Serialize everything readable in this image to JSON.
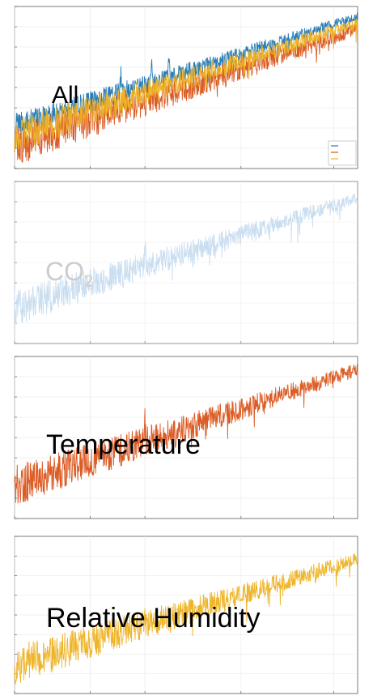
{
  "colors": {
    "co2": "#1f77b4",
    "temperature": "#d95319",
    "humidity": "#edb120",
    "co2_faded": "#b9d4ec",
    "axis": "#444444",
    "grid": "#e6e6e6",
    "label_black": "#000000",
    "label_gray": "#c0c0c0"
  },
  "chart_data": [
    {
      "type": "line",
      "scale": "log-log",
      "grid": true,
      "legend_position": "bottom-right",
      "overlay_label": "All",
      "series": [
        {
          "key": "co2",
          "color": "#1f77b4",
          "start_level": 0.74,
          "end_level": 0.06,
          "noise": 0.05,
          "peaks": [
            [
              0.31,
              0.1
            ],
            [
              0.4,
              0.16
            ],
            [
              0.45,
              0.12
            ]
          ]
        },
        {
          "key": "temperature",
          "color": "#d95319",
          "start_level": 0.86,
          "end_level": 0.14,
          "noise": 0.08,
          "peaks": [
            [
              0.4,
              0.08
            ]
          ]
        },
        {
          "key": "humidity",
          "color": "#edb120",
          "start_level": 0.8,
          "end_level": 0.1,
          "noise": 0.07,
          "peaks": [
            [
              0.4,
              0.06
            ]
          ]
        }
      ]
    },
    {
      "type": "line",
      "scale": "log-log",
      "grid": true,
      "overlay_label": "CO",
      "overlay_label_sub": "2",
      "series": [
        {
          "key": "co2",
          "color": "#b9d4ec",
          "start_level": 0.78,
          "end_level": 0.1,
          "noise": 0.07,
          "peaks": [
            [
              0.38,
              0.1
            ]
          ]
        }
      ]
    },
    {
      "type": "line",
      "scale": "log-log",
      "grid": true,
      "overlay_label": "Temperature",
      "series": [
        {
          "key": "temperature",
          "color": "#d95319",
          "start_level": 0.8,
          "end_level": 0.08,
          "noise": 0.08,
          "peaks": [
            [
              0.38,
              0.12
            ]
          ]
        }
      ]
    },
    {
      "type": "line",
      "scale": "log-log",
      "grid": true,
      "overlay_label": "Relative Humidity",
      "series": [
        {
          "key": "humidity",
          "color": "#edb120",
          "start_level": 0.82,
          "end_level": 0.14,
          "noise": 0.08,
          "peaks": [
            [
              0.38,
              0.08
            ]
          ]
        }
      ]
    }
  ]
}
